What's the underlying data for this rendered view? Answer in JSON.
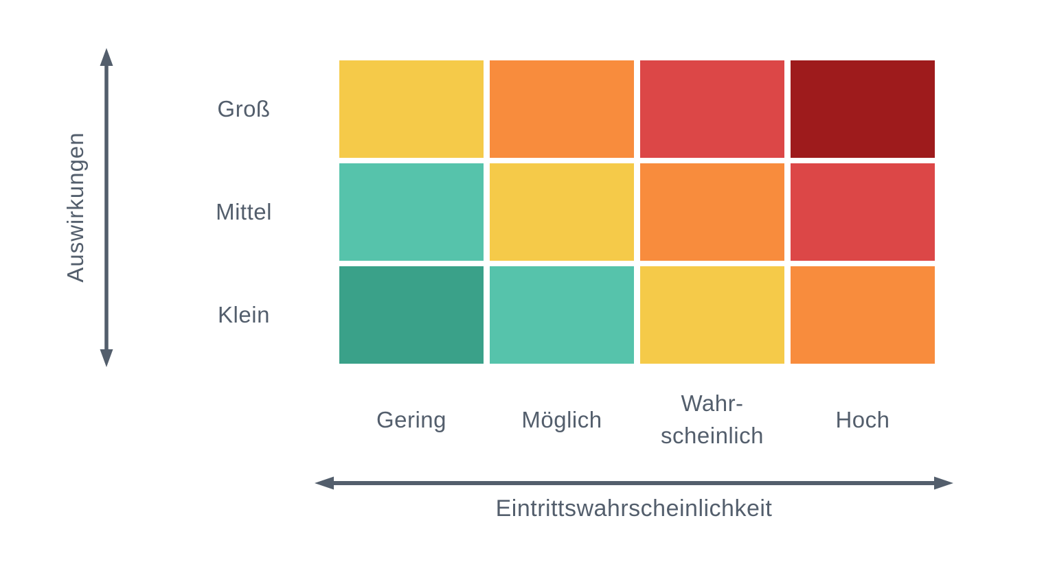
{
  "colors": {
    "text": "#535E6C",
    "arrow": "#535E6C",
    "palette": {
      "yellow": "#F5CA49",
      "orange": "#F88C3D",
      "red": "#DC4747",
      "dark_red": "#9E1B1C",
      "teal": "#56C3AB",
      "green": "#3AA189"
    }
  },
  "matrix": {
    "y_axis_label": "Auswirkungen",
    "x_axis_label": "Eintrittswahrscheinlichkeit",
    "rows": [
      "Groß",
      "Mittel",
      "Klein"
    ],
    "cols": [
      "Gering",
      "Möglich",
      "Wahr-\nscheinlich",
      "Hoch"
    ],
    "cells": [
      [
        "yellow",
        "orange",
        "red",
        "dark_red"
      ],
      [
        "teal",
        "yellow",
        "orange",
        "red"
      ],
      [
        "green",
        "teal",
        "yellow",
        "orange"
      ]
    ]
  }
}
